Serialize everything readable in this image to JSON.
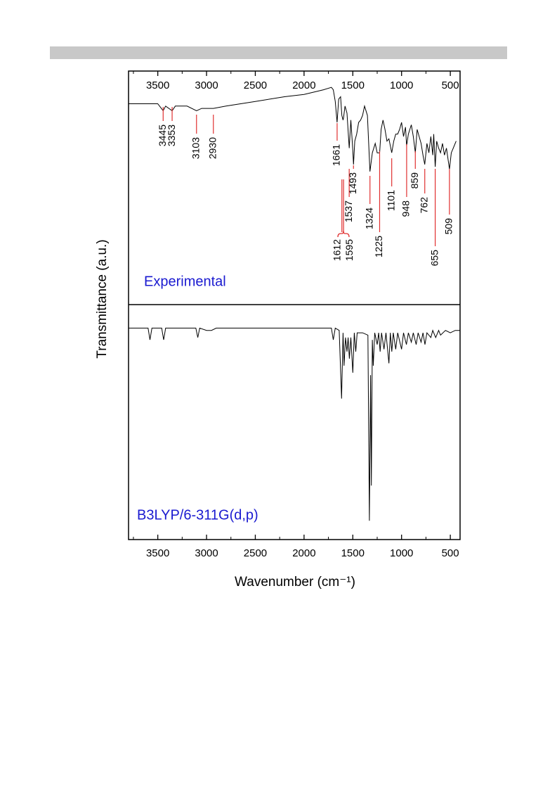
{
  "chart_data": [
    {
      "type": "line",
      "panel_label": "Experimental",
      "ylabel": "Transmittance (a.u.)",
      "color": "#000000",
      "annotation_color": "#e03030",
      "xlim": [
        3800,
        400
      ],
      "ylim": [
        0,
        100
      ],
      "xticks": [
        3500,
        3000,
        2500,
        2000,
        1500,
        1000,
        500
      ],
      "xticks_minor": [
        3750,
        3250,
        2750,
        2250,
        1750,
        1250,
        750
      ],
      "x": [
        3800,
        3500,
        3445,
        3420,
        3353,
        3320,
        3200,
        3103,
        3050,
        2930,
        2800,
        2500,
        2200,
        2000,
        1800,
        1720,
        1700,
        1680,
        1661,
        1645,
        1625,
        1612,
        1600,
        1595,
        1580,
        1560,
        1537,
        1520,
        1500,
        1493,
        1480,
        1460,
        1440,
        1420,
        1400,
        1380,
        1350,
        1324,
        1300,
        1270,
        1250,
        1225,
        1210,
        1190,
        1170,
        1150,
        1130,
        1101,
        1080,
        1060,
        1040,
        1020,
        1000,
        980,
        960,
        948,
        930,
        900,
        880,
        859,
        840,
        820,
        800,
        780,
        762,
        740,
        720,
        700,
        680,
        670,
        655,
        640,
        620,
        600,
        580,
        560,
        540,
        509,
        490,
        470,
        440
      ],
      "values": [
        86,
        86,
        83,
        85,
        83,
        85,
        85,
        83,
        84,
        84,
        85,
        87,
        89,
        90,
        92,
        93,
        92,
        87,
        78,
        88,
        89,
        81,
        79,
        80,
        85,
        82,
        67,
        79,
        66,
        60,
        70,
        73,
        78,
        79,
        81,
        85,
        81,
        57,
        65,
        69,
        65,
        65,
        75,
        79,
        75,
        70,
        71,
        65,
        70,
        73,
        73,
        75,
        78,
        72,
        76,
        68,
        73,
        77,
        72,
        65,
        75,
        72,
        69,
        64,
        60,
        69,
        65,
        72,
        64,
        73,
        59,
        70,
        67,
        65,
        69,
        64,
        67,
        58,
        65,
        67,
        70
      ],
      "annotations": [
        3445,
        3353,
        3103,
        2930,
        1661,
        1612,
        1595,
        1537,
        1493,
        1324,
        1225,
        1101,
        948,
        859,
        762,
        655,
        509
      ]
    },
    {
      "type": "line",
      "panel_label": "B3LYP/6-311G(d,p)",
      "xlabel": "Wavenumber (cm⁻¹)",
      "color": "#000000",
      "xlim": [
        3800,
        400
      ],
      "ylim": [
        0,
        100
      ],
      "xticks": [
        3500,
        3000,
        2500,
        2000,
        1500,
        1000,
        500
      ],
      "xticks_minor": [
        3750,
        3250,
        2750,
        2250,
        1750,
        1250,
        750
      ],
      "x": [
        3800,
        3600,
        3580,
        3560,
        3460,
        3440,
        3420,
        3110,
        3090,
        3070,
        3000,
        2950,
        2900,
        1720,
        1700,
        1680,
        1640,
        1615,
        1600,
        1590,
        1575,
        1560,
        1548,
        1535,
        1520,
        1500,
        1485,
        1470,
        1455,
        1400,
        1345,
        1330,
        1318,
        1310,
        1300,
        1290,
        1275,
        1250,
        1235,
        1220,
        1205,
        1180,
        1160,
        1130,
        1115,
        1100,
        1085,
        1060,
        1040,
        1000,
        980,
        950,
        930,
        900,
        880,
        850,
        830,
        800,
        780,
        760,
        740,
        700,
        680,
        650,
        620,
        600,
        550,
        500,
        450,
        400
      ],
      "values": [
        90,
        90,
        85,
        90,
        90,
        85,
        90,
        90,
        86,
        90,
        89,
        89,
        90,
        90,
        85,
        90,
        89,
        60,
        88,
        74,
        86,
        80,
        86,
        77,
        86,
        71,
        88,
        80,
        88,
        88,
        87,
        8,
        70,
        23,
        85,
        74,
        88,
        83,
        88,
        80,
        88,
        81,
        88,
        75,
        88,
        80,
        88,
        81,
        88,
        81,
        88,
        83,
        88,
        84,
        88,
        83,
        88,
        84,
        88,
        83,
        88,
        86,
        89,
        86,
        89,
        87,
        89,
        88,
        89,
        89
      ]
    }
  ]
}
